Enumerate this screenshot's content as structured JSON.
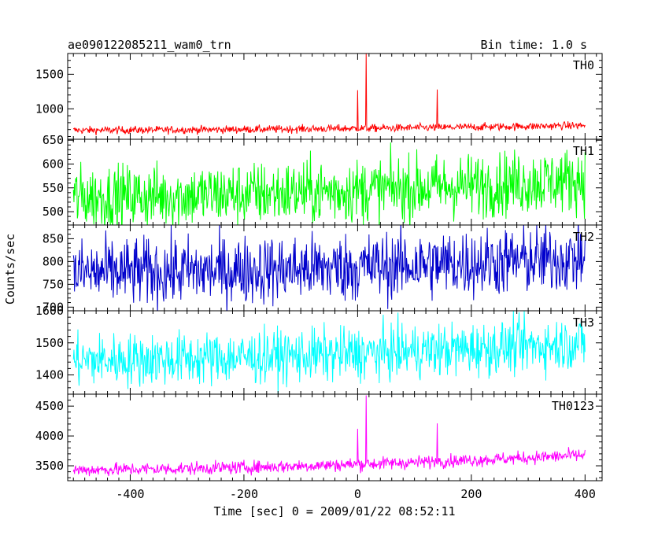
{
  "header": {
    "title": "ae090122085211_wam0_trn",
    "bin_time": "Bin time: 1.0 s"
  },
  "chart_data": {
    "type": "line",
    "title": "ae090122085211_wam0_trn",
    "subtitle": "Bin time: 1.0 s",
    "xlabel": "Time [sec] 0 = 2009/01/22 08:52:11",
    "ylabel": "Counts/sec",
    "xlim": [
      -510,
      430
    ],
    "xticks": [
      -400,
      -200,
      0,
      200,
      400
    ],
    "x_range": [
      -500,
      400
    ],
    "x_step": 1,
    "panels": [
      {
        "name": "TH0",
        "color": "#ff0000",
        "ylim": [
          560,
          1800
        ],
        "yticks": [
          1000,
          1500
        ],
        "baseline_start": 690,
        "baseline_end": 760,
        "noise": 28,
        "spikes": [
          {
            "x": 0,
            "y": 1270
          },
          {
            "x": 15,
            "y": 1800
          },
          {
            "x": 140,
            "y": 1280
          }
        ]
      },
      {
        "name": "TH1",
        "color": "#00ff00",
        "ylim": [
          472,
          652
        ],
        "yticks": [
          500,
          550,
          600,
          650
        ],
        "baseline_start": 530,
        "baseline_end": 568,
        "noise": 34,
        "spikes": []
      },
      {
        "name": "TH2",
        "color": "#0000cc",
        "ylim": [
          692,
          880
        ],
        "yticks": [
          700,
          750,
          800,
          850
        ],
        "baseline_start": 775,
        "baseline_end": 808,
        "noise": 38,
        "spikes": []
      },
      {
        "name": "TH3",
        "color": "#00ffff",
        "ylim": [
          1340,
          1600
        ],
        "yticks": [
          1400,
          1500,
          1600
        ],
        "baseline_start": 1445,
        "baseline_end": 1500,
        "noise": 42,
        "spikes": []
      },
      {
        "name": "TH0123",
        "color": "#ff00ff",
        "ylim": [
          3250,
          4700
        ],
        "yticks": [
          3500,
          4000,
          4500
        ],
        "baseline_start": 3430,
        "baseline_end": 3680,
        "noise": 55,
        "spikes": [
          {
            "x": 0,
            "y": 4120
          },
          {
            "x": 15,
            "y": 4680
          },
          {
            "x": 140,
            "y": 4210
          }
        ]
      }
    ]
  }
}
